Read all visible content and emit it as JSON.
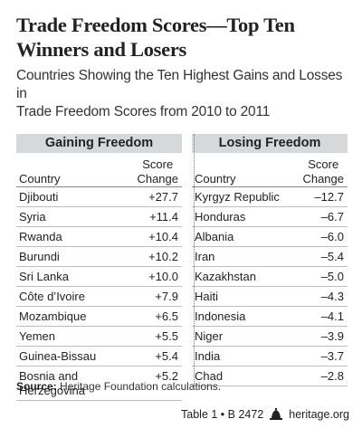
{
  "title_line1": "Trade Freedom Scores—Top Ten",
  "title_line2": "Winners and Losers",
  "subtitle_line1": "Countries Showing the Ten Highest Gains and Losses in",
  "subtitle_line2": "Trade Freedom Scores from 2010 to 2011",
  "gaining": {
    "header": "Gaining Freedom",
    "col_country": "Country",
    "col_score_1": "Score",
    "col_score_2": "Change",
    "rows": [
      {
        "country": "Djibouti",
        "change": "+27.7"
      },
      {
        "country": "Syria",
        "change": "+11.4"
      },
      {
        "country": "Rwanda",
        "change": "+10.4"
      },
      {
        "country": "Burundi",
        "change": "+10.2"
      },
      {
        "country": "Sri Lanka",
        "change": "+10.0"
      },
      {
        "country": "Côte d’Ivoire",
        "change": "+7.9"
      },
      {
        "country": "Mozambique",
        "change": "+6.5"
      },
      {
        "country": "Yemen",
        "change": "+5.5"
      },
      {
        "country": "Guinea-Bissau",
        "change": "+5.4"
      },
      {
        "country": "Bosnia and Herzegovina",
        "change": "+5.2"
      }
    ]
  },
  "losing": {
    "header": "Losing Freedom",
    "col_country": "Country",
    "col_score_1": "Score",
    "col_score_2": "Change",
    "rows": [
      {
        "country": "Kyrgyz Republic",
        "change": "–12.7"
      },
      {
        "country": "Honduras",
        "change": "–6.7"
      },
      {
        "country": "Albania",
        "change": "–6.0"
      },
      {
        "country": "Iran",
        "change": "–5.4"
      },
      {
        "country": "Kazakhstan",
        "change": "–5.0"
      },
      {
        "country": "Haiti",
        "change": "–4.3"
      },
      {
        "country": "Indonesia",
        "change": "–4.1"
      },
      {
        "country": "Niger",
        "change": "–3.9"
      },
      {
        "country": "India",
        "change": "–3.7"
      },
      {
        "country": "Chad",
        "change": "–2.8"
      }
    ]
  },
  "source_label": "Source:",
  "source_text": "Heritage Foundation calculations.",
  "footer_table": "Table 1 • B 2472",
  "footer_site": "heritage.org",
  "colors": {
    "header_bar": "#d7d8da",
    "text": "#1a1a1a"
  },
  "icons": {
    "logo": "liberty-bell-icon"
  }
}
